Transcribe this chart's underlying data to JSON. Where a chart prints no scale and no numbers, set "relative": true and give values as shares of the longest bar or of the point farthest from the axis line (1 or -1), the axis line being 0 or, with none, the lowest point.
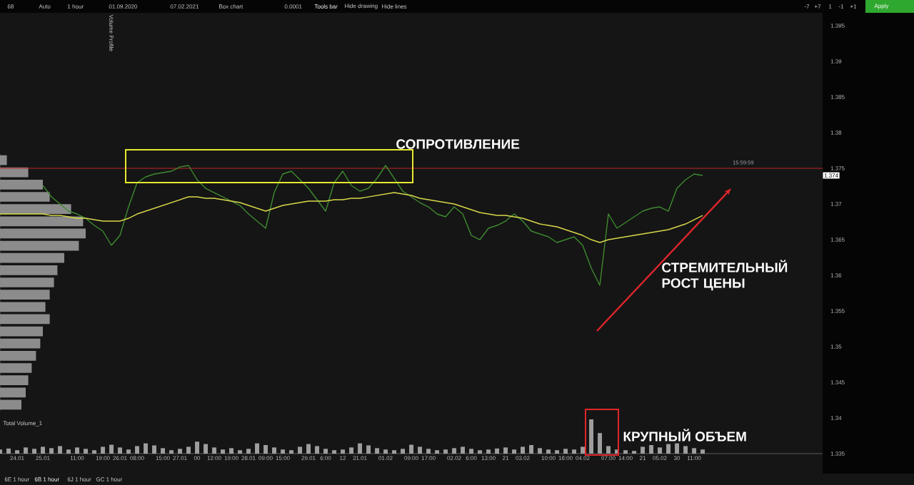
{
  "chart_data": [
    {
      "type": "line",
      "categories": [
        null,
        null,
        "24.01",
        null,
        null,
        "25.01",
        null,
        null,
        null,
        "11:00",
        null,
        null,
        "19:00",
        null,
        "26.01",
        null,
        "08:00",
        null,
        null,
        "15:00",
        null,
        "27.01",
        null,
        "00",
        null,
        "12:00",
        null,
        "19:00",
        null,
        "28.01",
        null,
        "09:00",
        null,
        "15:00",
        null,
        null,
        "29.01",
        null,
        "6:00",
        null,
        "12",
        null,
        "31.01",
        null,
        null,
        "01.02",
        null,
        null,
        "09:00",
        null,
        "17:00",
        null,
        null,
        "02.02",
        null,
        "6:00",
        null,
        "13:00",
        null,
        "21",
        null,
        "03.02",
        null,
        null,
        "10:00",
        null,
        "18:00",
        null,
        "04.02",
        null,
        null,
        "07:00",
        null,
        "14:00",
        null,
        "21",
        null,
        "05.02",
        null,
        "30",
        null,
        "11:00",
        null,
        null,
        null,
        null,
        null,
        null,
        null,
        null,
        null,
        null,
        null,
        null,
        null,
        null,
        null
      ],
      "series": [
        {
          "color": "#3f8a30",
          "values": [
            null,
            null,
            null,
            null,
            null,
            1.3726,
            1.371,
            1.37,
            1.369,
            1.3686,
            1.368,
            1.367,
            1.3662,
            1.3642,
            1.3656,
            1.3696,
            1.373,
            1.3738,
            1.3742,
            1.3744,
            1.3746,
            1.3752,
            1.3754,
            1.3734,
            1.3722,
            1.3716,
            1.371,
            1.3704,
            1.3698,
            1.3686,
            1.3676,
            1.3666,
            1.3716,
            1.3742,
            1.3746,
            1.3734,
            1.3722,
            1.3706,
            1.369,
            1.373,
            1.3746,
            1.3726,
            1.3718,
            1.3722,
            1.3736,
            1.3754,
            1.3736,
            1.3718,
            1.371,
            1.3702,
            1.3696,
            1.3686,
            1.3682,
            1.3696,
            1.3686,
            1.3656,
            1.365,
            1.3666,
            1.367,
            1.3676,
            1.3686,
            1.3676,
            1.3662,
            1.3658,
            1.3654,
            1.3646,
            1.365,
            1.3654,
            1.3642,
            1.361,
            1.3586,
            1.3686,
            1.3666,
            1.3674,
            1.3682,
            1.369,
            1.3694,
            1.3696,
            1.369,
            1.3722,
            1.3734,
            1.3742,
            1.374,
            null,
            null,
            null,
            null,
            null,
            null,
            null,
            null,
            null,
            null,
            null,
            null,
            null,
            null
          ]
        },
        {
          "color": "#d8d84a",
          "values": [
            1.3686,
            1.3686,
            1.3686,
            1.3686,
            1.3686,
            1.3686,
            1.3684,
            1.3684,
            1.3682,
            1.368,
            1.368,
            1.3678,
            1.3676,
            1.3676,
            1.3676,
            1.368,
            1.3686,
            1.369,
            1.3694,
            1.3698,
            1.3702,
            1.3706,
            1.371,
            1.371,
            1.3708,
            1.3708,
            1.3706,
            1.3704,
            1.3702,
            1.3698,
            1.3694,
            1.369,
            1.3694,
            1.3698,
            1.37,
            1.3702,
            1.3704,
            1.3704,
            1.3704,
            1.3706,
            1.3706,
            1.3708,
            1.3708,
            1.371,
            1.3712,
            1.3714,
            1.3716,
            1.3714,
            1.3712,
            1.3708,
            1.3706,
            1.3704,
            1.3702,
            1.37,
            1.3696,
            1.3692,
            1.3688,
            1.3686,
            1.3684,
            1.3684,
            1.3682,
            1.368,
            1.3676,
            1.3672,
            1.367,
            1.3668,
            1.3664,
            1.366,
            1.3656,
            1.365,
            1.3646,
            1.365,
            1.3652,
            1.3654,
            1.3656,
            1.3658,
            1.366,
            1.3662,
            1.3664,
            1.3668,
            1.3672,
            1.3678,
            1.3684,
            null,
            null,
            null,
            null,
            null,
            null,
            null,
            null,
            null,
            null,
            null,
            null,
            null,
            null
          ]
        }
      ],
      "ylim": [
        1.335,
        1.395
      ],
      "yticks": [
        1.335,
        1.34,
        1.345,
        1.35,
        1.355,
        1.36,
        1.365,
        1.37,
        1.375,
        1.38,
        1.385,
        1.39,
        1.395
      ],
      "ref_lines": [
        {
          "axis": "y",
          "value": 1.375,
          "color": "#c0262b"
        }
      ],
      "annotations": [
        "СОПРОТИВЛЕНИЕ",
        "СТРЕМИТЕЛЬНЫЙ РОСТ ЦЕНЫ",
        {
          "text": "1.374",
          "y": 1.374
        },
        "68",
        "Auto",
        "1 hour",
        "01.09.2020",
        "07.02.2021",
        "Box chart",
        "0.0001",
        "Tools bar",
        "Hide drawing",
        "Hide lines",
        "-7",
        "+7",
        "1",
        "-1",
        "+1",
        "Apply",
        "6E 1 hour",
        "6B 1 hour",
        "6J 1 hour",
        "GC 1 hour",
        "15:59:59"
      ]
    },
    {
      "type": "bar",
      "orientation": "horizontal",
      "relative": true,
      "categories": [
        null,
        null,
        null,
        null,
        null,
        null,
        null,
        null,
        null,
        null,
        null,
        null,
        null,
        null,
        null,
        null,
        null,
        null,
        null,
        null,
        null
      ],
      "values": [
        0.08,
        0.33,
        0.5,
        0.58,
        0.83,
        0.97,
        1,
        0.92,
        0.75,
        0.67,
        0.63,
        0.58,
        0.53,
        0.58,
        0.5,
        0.47,
        0.42,
        0.37,
        0.33,
        0.3,
        0.25
      ],
      "color": "#8c8c8c",
      "annotations": [
        "Volume Profile"
      ]
    },
    {
      "type": "bar",
      "relative": true,
      "categories": [
        null,
        null,
        null,
        null,
        null,
        null,
        null,
        null,
        null,
        null,
        null,
        null,
        null,
        null,
        null,
        null,
        null,
        null,
        null,
        null,
        null,
        null,
        null,
        null,
        null,
        null,
        null,
        null,
        null,
        null,
        null,
        null,
        null,
        null,
        null,
        null,
        null,
        null,
        null,
        null,
        null,
        null,
        null,
        null,
        null,
        null,
        null,
        null,
        null,
        null,
        null,
        null,
        null,
        null,
        null,
        null,
        null,
        null,
        null,
        null,
        null,
        null,
        null,
        null,
        null,
        null,
        null,
        null,
        null,
        null,
        null,
        null,
        null,
        null,
        null,
        null,
        null,
        null,
        null,
        null,
        null,
        null,
        null,
        null,
        null,
        null,
        null,
        null,
        null,
        null,
        null,
        null,
        null,
        null,
        null,
        null,
        null
      ],
      "values": [
        0.12,
        0.15,
        0.1,
        0.18,
        0.14,
        0.2,
        0.16,
        0.22,
        0.12,
        0.18,
        0.14,
        0.1,
        0.2,
        0.26,
        0.18,
        0.12,
        0.22,
        0.3,
        0.24,
        0.16,
        0.1,
        0.14,
        0.2,
        0.35,
        0.28,
        0.18,
        0.12,
        0.16,
        0.1,
        0.14,
        0.3,
        0.25,
        0.18,
        0.12,
        0.1,
        0.2,
        0.28,
        0.22,
        0.14,
        0.1,
        0.12,
        0.18,
        0.3,
        0.24,
        0.16,
        0.12,
        0.1,
        0.14,
        0.26,
        0.2,
        0.14,
        0.1,
        0.12,
        0.16,
        0.2,
        0.14,
        0.1,
        0.12,
        0.15,
        0.18,
        0.12,
        0.2,
        0.25,
        0.16,
        0.12,
        0.1,
        0.14,
        0.12,
        0.2,
        1.0,
        0.6,
        0.22,
        0.12,
        0.1,
        0.08,
        0.2,
        0.25,
        0.18,
        0.28,
        0.3,
        0.22,
        0.16,
        0.12,
        null,
        null,
        null,
        null,
        null,
        null,
        null,
        null,
        null,
        null,
        null,
        null,
        null,
        null
      ],
      "color": "#9e9e9e",
      "annotations": [
        "Total Volume_1",
        "КРУПНЫЙ ОБЪЕМ"
      ]
    }
  ]
}
